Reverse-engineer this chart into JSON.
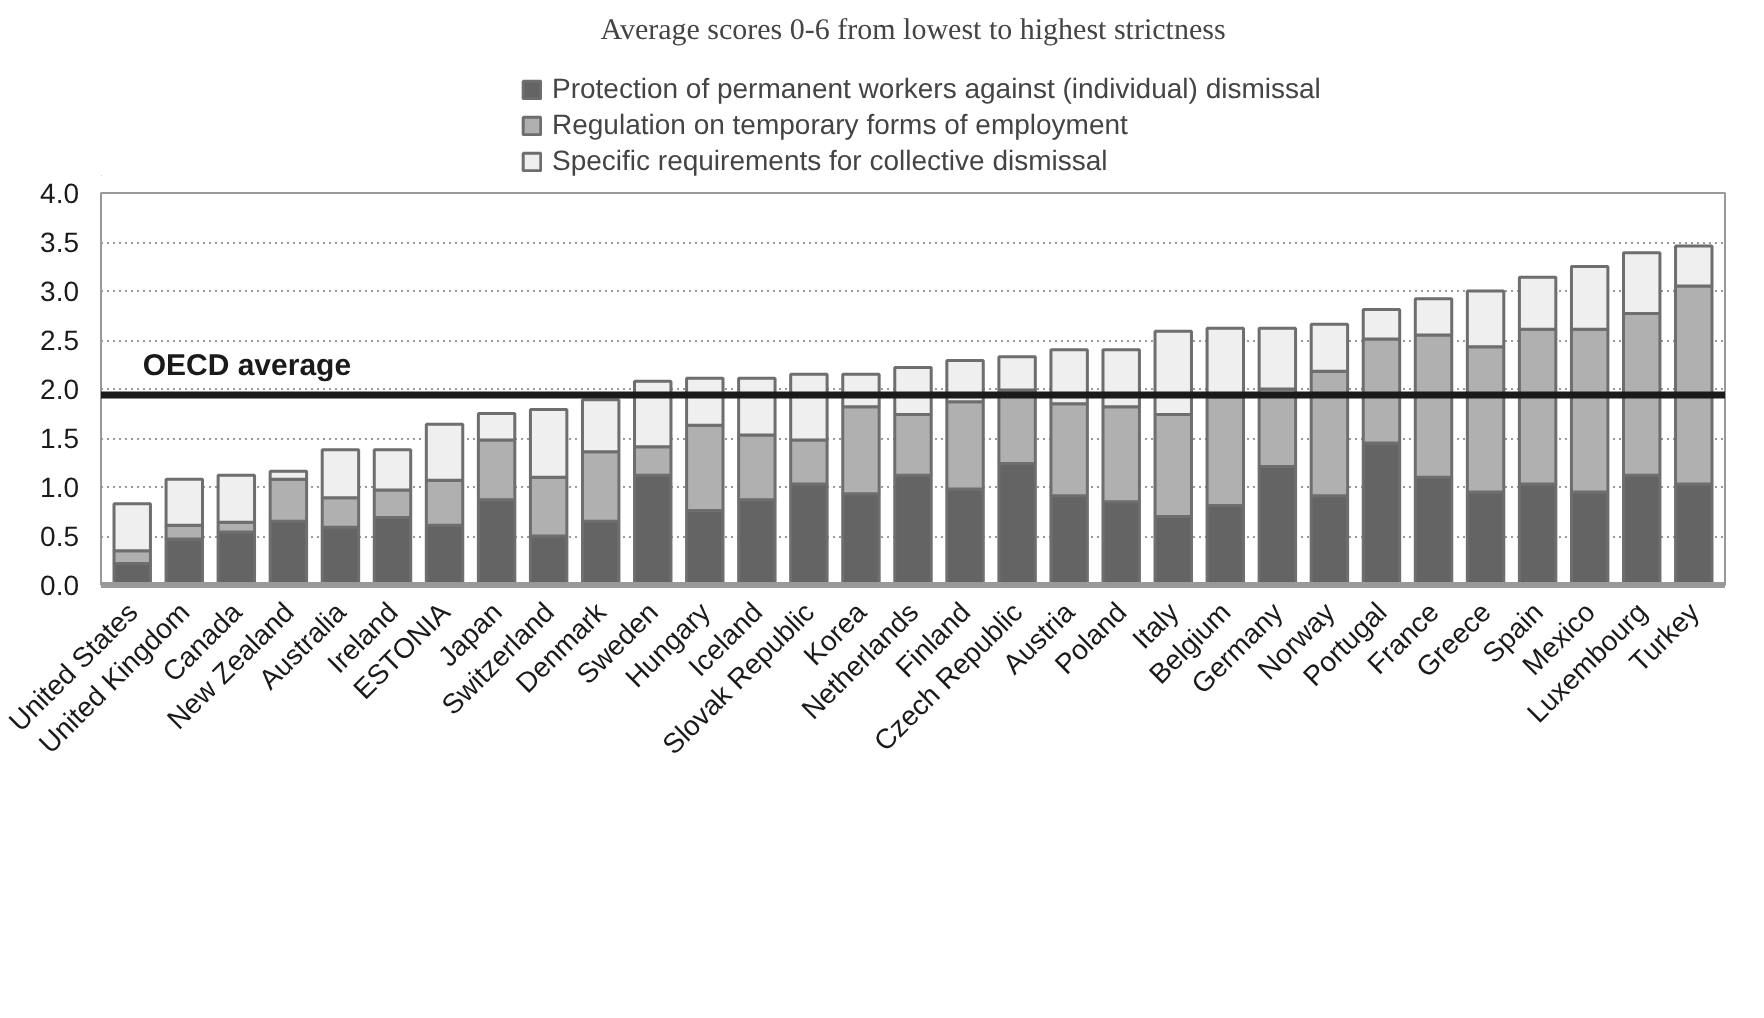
{
  "chart_data": {
    "type": "bar",
    "stacked": true,
    "title": "Average scores 0-6 from lowest to highest strictness",
    "categories": [
      "United States",
      "United Kingdom",
      "Canada",
      "New Zealand",
      "Australia",
      "Ireland",
      "ESTONIA",
      "Japan",
      "Switzerland",
      "Denmark",
      "Sweden",
      "Hungary",
      "Iceland",
      "Slovak Republic",
      "Korea",
      "Netherlands",
      "Finland",
      "Czech Republic",
      "Austria",
      "Poland",
      "Italy",
      "Belgium",
      "Germany",
      "Norway",
      "Portugal",
      "France",
      "Greece",
      "Spain",
      "Mexico",
      "Luxembourg",
      "Turkey"
    ],
    "series": [
      {
        "name": "Protection of permanent workers against (individual) dismissal",
        "color": "#646464",
        "values": [
          0.22,
          0.47,
          0.54,
          0.65,
          0.59,
          0.69,
          0.61,
          0.87,
          0.5,
          0.65,
          1.12,
          0.76,
          0.87,
          1.03,
          0.93,
          1.12,
          0.98,
          1.24,
          0.91,
          0.85,
          0.7,
          0.81,
          1.21,
          0.91,
          1.45,
          1.1,
          0.95,
          1.03,
          0.95,
          1.12,
          1.03
        ]
      },
      {
        "name": "Regulation on temporary forms of employment",
        "color": "#b0b0b0",
        "values": [
          0.13,
          0.14,
          0.1,
          0.43,
          0.3,
          0.28,
          0.46,
          0.61,
          0.6,
          0.71,
          0.29,
          0.87,
          0.66,
          0.45,
          0.89,
          0.62,
          0.89,
          0.75,
          0.94,
          0.97,
          1.04,
          1.11,
          0.79,
          1.27,
          1.06,
          1.45,
          1.48,
          1.58,
          1.66,
          1.65,
          2.02
        ]
      },
      {
        "name": "Specific requirements for collective dismissal",
        "color": "#efefef",
        "values": [
          0.48,
          0.47,
          0.48,
          0.08,
          0.49,
          0.41,
          0.57,
          0.27,
          0.69,
          0.53,
          0.67,
          0.48,
          0.58,
          0.67,
          0.33,
          0.48,
          0.42,
          0.34,
          0.55,
          0.58,
          0.85,
          0.7,
          0.62,
          0.48,
          0.3,
          0.37,
          0.57,
          0.53,
          0.64,
          0.62,
          0.41
        ]
      }
    ],
    "ylim": [
      0,
      4
    ],
    "yticks": [
      {
        "value": 0,
        "label": "0.0"
      },
      {
        "value": 0.5,
        "label": "0.5"
      },
      {
        "value": 1,
        "label": "1.0"
      },
      {
        "value": 1.5,
        "label": "1.5"
      },
      {
        "value": 2,
        "label": "2.0"
      },
      {
        "value": 2.5,
        "label": "2.5"
      },
      {
        "value": 3,
        "label": "3.0"
      },
      {
        "value": 3.5,
        "label": "3.5"
      },
      {
        "value": 4,
        "label": "4.0"
      }
    ],
    "grid": "y",
    "legend": "top",
    "ref_lines": [
      {
        "axis": "y",
        "value": 1.94,
        "label": "OECD average",
        "color": "#1a1a1a"
      }
    ]
  }
}
